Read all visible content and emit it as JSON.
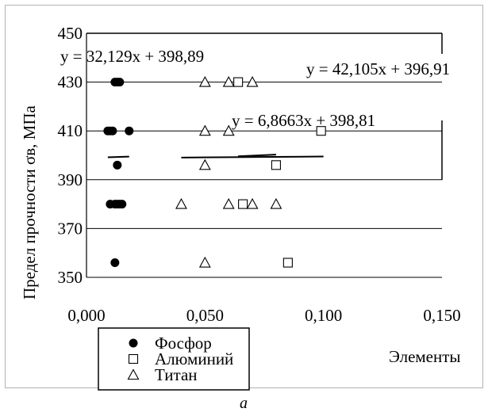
{
  "caption": "а",
  "chart_data": {
    "type": "scatter",
    "title": "",
    "xlabel": "Элементы",
    "ylabel": "Предел прочности σв, МПа",
    "xlim": [
      0,
      0.15
    ],
    "ylim": [
      350,
      450
    ],
    "xticks": [
      "0,000",
      "0,050",
      "0,100",
      "0,150"
    ],
    "yticks": [
      "350",
      "370",
      "390",
      "410",
      "430",
      "450"
    ],
    "grid": "horizontal",
    "legend_position": "bottom-left",
    "series": [
      {
        "name": "Фосфор",
        "marker": "filled-circle",
        "x": [
          0.012,
          0.013,
          0.014,
          0.009,
          0.01,
          0.011,
          0.018,
          0.013,
          0.01,
          0.012,
          0.013,
          0.014,
          0.015,
          0.012
        ],
        "y": [
          430,
          430,
          430,
          410,
          410,
          410,
          410,
          396,
          380,
          380,
          380,
          380,
          380,
          356
        ],
        "trendline": {
          "equation": "y = 32,129x + 398,89",
          "slope": 32.129,
          "intercept": 398.89,
          "x_range": [
            0.009,
            0.018
          ]
        }
      },
      {
        "name": "Алюминий",
        "marker": "open-square",
        "x": [
          0.064,
          0.099,
          0.08,
          0.066,
          0.085
        ],
        "y": [
          430,
          410,
          396,
          380,
          356
        ],
        "trendline": {
          "equation": "y = 42,105x + 396,91",
          "slope": 42.105,
          "intercept": 396.91,
          "x_range": [
            0.064,
            0.08
          ]
        }
      },
      {
        "name": "Титан",
        "marker": "open-triangle",
        "x": [
          0.05,
          0.06,
          0.07,
          0.05,
          0.06,
          0.05,
          0.04,
          0.06,
          0.07,
          0.08,
          0.05
        ],
        "y": [
          430,
          430,
          430,
          410,
          410,
          396,
          380,
          380,
          380,
          380,
          356
        ],
        "trendline": {
          "equation": "y = 6,8663x + 398,81",
          "slope": 6.8663,
          "intercept": 398.81,
          "x_range": [
            0.04,
            0.1
          ]
        }
      }
    ]
  },
  "colors": {
    "axis": "#000000",
    "grid": "#000000",
    "frame": "#b3b3b3",
    "background": "#ffffff"
  }
}
